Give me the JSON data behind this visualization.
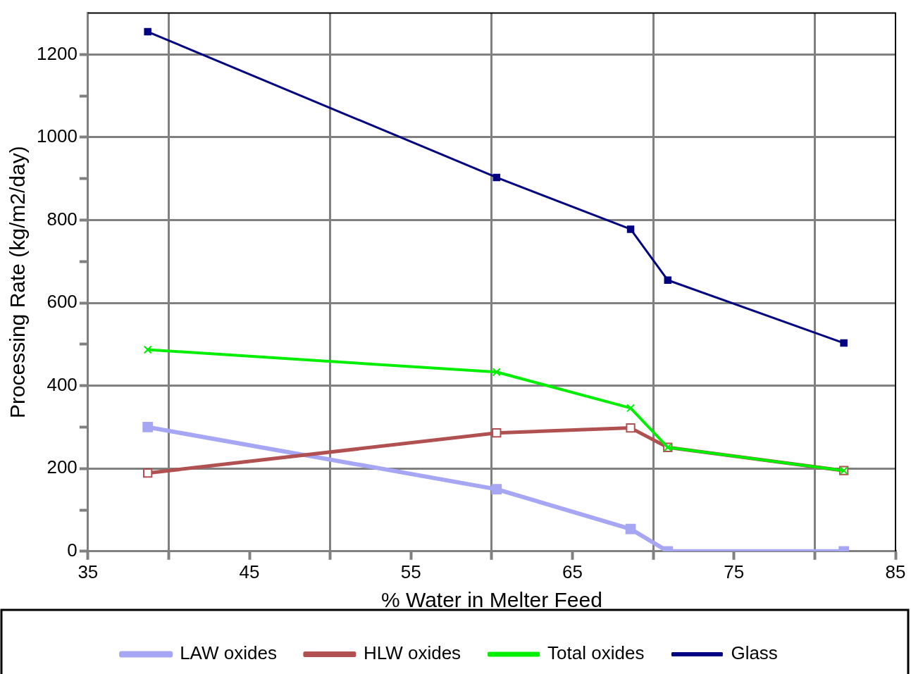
{
  "chart_data": {
    "type": "line",
    "xlabel": "% Water in Melter Feed",
    "ylabel": "Processing Rate (kg/m2/day)",
    "x": [
      38.7,
      60.3,
      68.6,
      70.9,
      81.8
    ],
    "series": [
      {
        "name": "LAW oxides",
        "color": "#a6a6f5",
        "marker": "square",
        "values": [
          300,
          150,
          54,
          0,
          0
        ]
      },
      {
        "name": "HLW oxides",
        "color": "#b05050",
        "marker": "square-open",
        "values": [
          189,
          286,
          298,
          251,
          195
        ]
      },
      {
        "name": "Total oxides",
        "color": "#00ee00",
        "marker": "cross",
        "values": [
          487,
          433,
          346,
          251,
          195
        ]
      },
      {
        "name": "Glass",
        "color": "#000080",
        "marker": "square",
        "values": [
          1255,
          903,
          778,
          655,
          503
        ]
      }
    ],
    "xlim": [
      35,
      85
    ],
    "xticks": [
      35,
      {
        "value": 40,
        "label": null
      },
      45,
      {
        "value": 50,
        "label": null
      },
      55,
      {
        "value": 60,
        "label": null
      },
      65,
      {
        "value": 70,
        "label": null
      },
      75,
      {
        "value": 80,
        "label": null
      },
      85
    ],
    "ylim": [
      0,
      1300
    ],
    "yticks": [
      0,
      {
        "value": 100,
        "label": null
      },
      200,
      {
        "value": 300,
        "label": null
      },
      400,
      {
        "value": 500,
        "label": null
      },
      600,
      {
        "value": 700,
        "label": null
      },
      800,
      {
        "value": 900,
        "label": null
      },
      1000,
      {
        "value": 1100,
        "label": null
      },
      1200
    ],
    "grid": true,
    "legend": "bottom",
    "line_style": "solid"
  }
}
